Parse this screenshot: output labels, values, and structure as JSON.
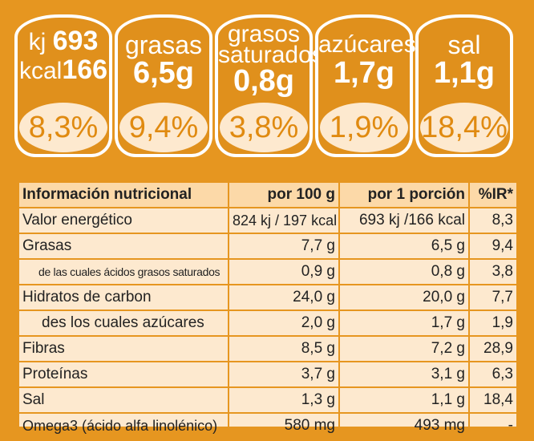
{
  "badges": [
    {
      "line1_label": "kj",
      "line1_value": "693",
      "line2_label": "kcal",
      "line2_value": "166",
      "percent": "8,3%"
    },
    {
      "label": "grasas",
      "value": "6,5g",
      "percent": "9,4%"
    },
    {
      "label_a": "grasos",
      "label_b": "saturados",
      "value": "0,8g",
      "percent": "3,8%"
    },
    {
      "label": "azúcares",
      "value": "1,7g",
      "percent": "1,9%"
    },
    {
      "label": "sal",
      "value": "1,1g",
      "percent": "18,4%"
    }
  ],
  "table": {
    "headers": [
      "Información nutricional",
      "por 100 g",
      "por 1 porción",
      "%IR*"
    ],
    "rows": [
      {
        "name": "Valor energético",
        "per100": "824 kj  / 197 kcal",
        "portion": "693 kj  /166 kcal",
        "ir": "8,3"
      },
      {
        "name": "Grasas",
        "per100": "7,7 g",
        "portion": "6,5 g",
        "ir": "9,4"
      },
      {
        "name": "de las cuales ácidos grasos saturados",
        "per100": "0,9 g",
        "portion": "0,8 g",
        "ir": "3,8"
      },
      {
        "name": "Hidratos de carbon",
        "per100": "24,0 g",
        "portion": "20,0 g",
        "ir": "7,7"
      },
      {
        "name": "des los cuales azúcares",
        "per100": "2,0 g",
        "portion": "1,7 g",
        "ir": "1,9"
      },
      {
        "name": "Fibras",
        "per100": "8,5 g",
        "portion": "7,2 g",
        "ir": "28,9"
      },
      {
        "name": "Proteínas",
        "per100": "3,7 g",
        "portion": "3,1 g",
        "ir": "6,3"
      },
      {
        "name": "Sal",
        "per100": "1,3 g",
        "portion": "1,1 g",
        "ir": "18,4"
      },
      {
        "name": "Omega3 (ácido alfa linolénico)",
        "per100": "580 mg",
        "portion": "493 mg",
        "ir": "-"
      }
    ]
  }
}
